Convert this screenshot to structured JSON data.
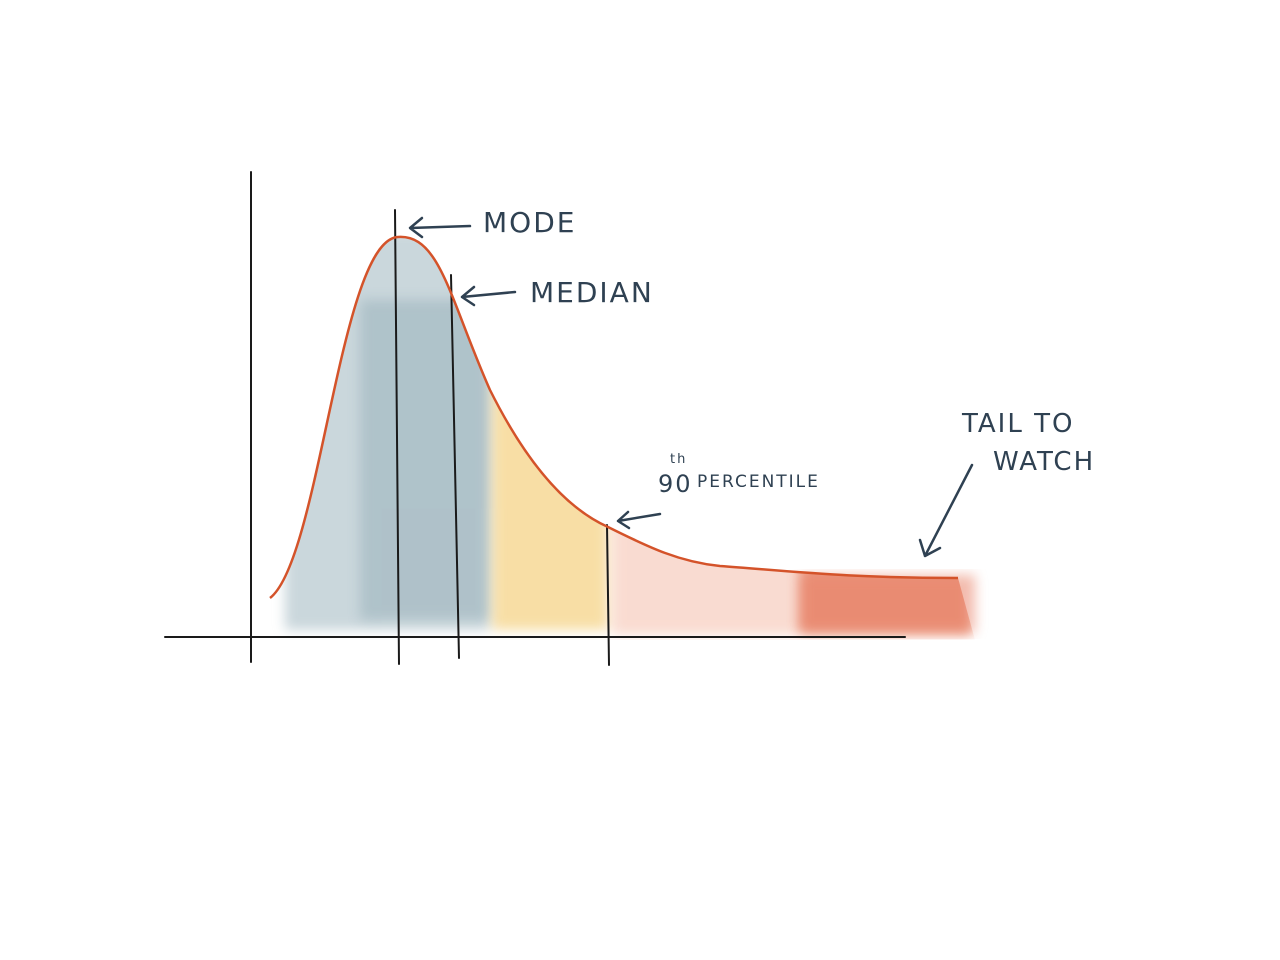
{
  "annotations": {
    "mode": "MODE",
    "median": "MEDIAN",
    "percentile": {
      "number": "90",
      "suffix": "th",
      "word": "PERCENTILE"
    },
    "tail": {
      "line1": "TAIL TO",
      "line2": "WATCH"
    }
  }
}
